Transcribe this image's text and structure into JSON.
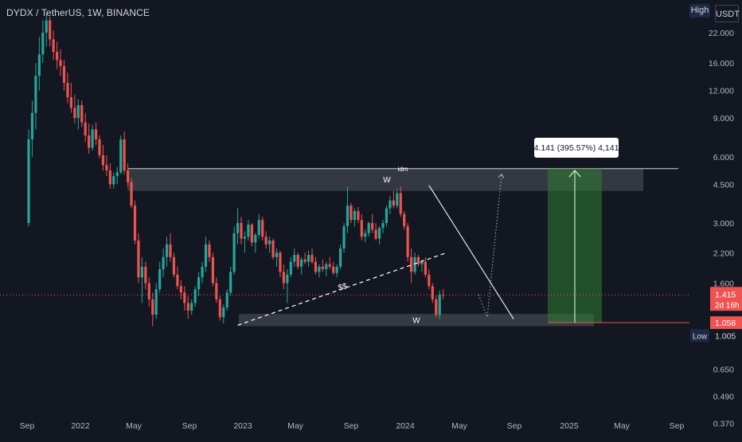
{
  "header": {
    "title": "DYDX / TetherUS, 1W, BINANCE",
    "high_label": "High",
    "currency_label": "USDT"
  },
  "colors": {
    "background": "#131722",
    "up": "#26a69a",
    "down": "#ef5350",
    "zone": "#3a3d44",
    "profit_zone": "#2e7d32"
  },
  "chart_data": {
    "type": "candlestick",
    "symbol": "DYDX / TetherUS",
    "interval": "1W",
    "exchange": "BINANCE",
    "y_scale": "log",
    "ylim": [
      0.33,
      28
    ],
    "y_ticks": [
      {
        "value": 22.0,
        "label": "22.000"
      },
      {
        "value": 16.0,
        "label": "16.000"
      },
      {
        "value": 12.0,
        "label": "12.000"
      },
      {
        "value": 9.0,
        "label": "9.000"
      },
      {
        "value": 6.0,
        "label": "6.000"
      },
      {
        "value": 4.5,
        "label": "4.500"
      },
      {
        "value": 3.0,
        "label": "3.000"
      },
      {
        "value": 2.2,
        "label": "2.200"
      },
      {
        "value": 1.6,
        "label": "1.600"
      },
      {
        "value": 0.65,
        "label": "0.650"
      },
      {
        "value": 0.49,
        "label": "0.490"
      },
      {
        "value": 0.37,
        "label": "0.370"
      }
    ],
    "x_ticks": [
      "Sep",
      "2022",
      "May",
      "Sep",
      "2023",
      "May",
      "Sep",
      "2024",
      "May",
      "Sep",
      "2025",
      "May",
      "Sep"
    ],
    "price_labels": {
      "current": {
        "value": "1.415",
        "countdown": "2d 16h"
      },
      "level": {
        "value": "1.058"
      },
      "low": {
        "label": "Low",
        "value": "1.005"
      }
    },
    "annotations": {
      "measure_label": "4.141 (395.57%) 4,141",
      "top_zone_label": "idm",
      "top_w_label": "W",
      "bottom_w_label": "W",
      "liquidity_label": "$$"
    },
    "candles": [
      [
        3.0,
        8.0,
        2.9,
        7.2
      ],
      [
        7.2,
        10.8,
        6.0,
        9.5
      ],
      [
        9.5,
        16.0,
        8.0,
        14.0
      ],
      [
        14.0,
        21.0,
        12.0,
        17.5
      ],
      [
        17.5,
        25.0,
        16.0,
        22.0
      ],
      [
        22.0,
        27.0,
        19.0,
        25.0
      ],
      [
        25.0,
        26.0,
        19.0,
        20.5
      ],
      [
        20.5,
        22.5,
        16.5,
        18.0
      ],
      [
        18.0,
        20.0,
        15.0,
        16.5
      ],
      [
        16.5,
        18.5,
        14.0,
        15.5
      ],
      [
        15.5,
        16.5,
        12.0,
        13.0
      ],
      [
        13.0,
        14.5,
        10.5,
        11.2
      ],
      [
        11.2,
        13.0,
        9.5,
        10.0
      ],
      [
        10.0,
        11.5,
        8.5,
        9.0
      ],
      [
        9.0,
        11.0,
        8.0,
        10.3
      ],
      [
        10.3,
        10.8,
        8.2,
        8.6
      ],
      [
        8.6,
        9.5,
        7.0,
        7.5
      ],
      [
        7.5,
        8.5,
        6.2,
        6.6
      ],
      [
        6.6,
        8.4,
        6.4,
        8.0
      ],
      [
        8.0,
        8.6,
        6.8,
        7.2
      ],
      [
        7.2,
        7.5,
        5.9,
        6.1
      ],
      [
        6.1,
        6.8,
        5.2,
        5.5
      ],
      [
        5.5,
        6.1,
        4.9,
        5.2
      ],
      [
        5.2,
        5.6,
        4.3,
        4.5
      ],
      [
        4.5,
        5.1,
        4.3,
        4.9
      ],
      [
        4.9,
        5.4,
        4.5,
        5.1
      ],
      [
        5.1,
        7.5,
        5.0,
        7.2
      ],
      [
        7.2,
        7.8,
        5.0,
        5.2
      ],
      [
        5.2,
        5.6,
        4.4,
        4.6
      ],
      [
        4.6,
        4.8,
        3.5,
        3.6
      ],
      [
        3.6,
        3.8,
        2.4,
        2.5
      ],
      [
        2.5,
        2.7,
        1.6,
        1.7
      ],
      [
        1.7,
        2.1,
        1.3,
        1.9
      ],
      [
        1.9,
        2.0,
        1.5,
        1.6
      ],
      [
        1.6,
        1.7,
        1.25,
        1.35
      ],
      [
        1.35,
        1.45,
        1.02,
        1.15
      ],
      [
        1.15,
        1.6,
        1.1,
        1.5
      ],
      [
        1.5,
        2.0,
        1.45,
        1.85
      ],
      [
        1.85,
        2.3,
        1.7,
        2.1
      ],
      [
        2.1,
        2.6,
        1.9,
        2.4
      ],
      [
        2.4,
        2.7,
        2.0,
        2.1
      ],
      [
        2.1,
        2.2,
        1.7,
        1.75
      ],
      [
        1.75,
        1.9,
        1.5,
        1.55
      ],
      [
        1.55,
        1.65,
        1.35,
        1.45
      ],
      [
        1.45,
        1.55,
        1.2,
        1.3
      ],
      [
        1.3,
        1.4,
        1.1,
        1.2
      ],
      [
        1.2,
        1.35,
        1.15,
        1.3
      ],
      [
        1.3,
        1.55,
        1.25,
        1.5
      ],
      [
        1.5,
        1.8,
        1.4,
        1.7
      ],
      [
        1.7,
        2.0,
        1.6,
        1.9
      ],
      [
        1.9,
        2.6,
        1.8,
        2.4
      ],
      [
        2.4,
        2.5,
        2.0,
        2.1
      ],
      [
        2.1,
        2.2,
        1.55,
        1.6
      ],
      [
        1.6,
        1.7,
        1.3,
        1.35
      ],
      [
        1.35,
        1.4,
        1.08,
        1.12
      ],
      [
        1.12,
        1.28,
        1.05,
        1.24
      ],
      [
        1.24,
        1.5,
        1.2,
        1.45
      ],
      [
        1.45,
        1.9,
        1.4,
        1.8
      ],
      [
        1.8,
        2.9,
        1.75,
        2.7
      ],
      [
        2.7,
        3.5,
        2.4,
        3.0
      ],
      [
        3.0,
        3.2,
        2.4,
        2.55
      ],
      [
        2.55,
        2.75,
        2.2,
        2.6
      ],
      [
        2.6,
        3.1,
        2.5,
        2.95
      ],
      [
        2.95,
        3.0,
        2.35,
        2.45
      ],
      [
        2.45,
        2.7,
        2.2,
        2.65
      ],
      [
        2.65,
        3.3,
        2.55,
        3.1
      ],
      [
        3.1,
        3.2,
        2.5,
        2.6
      ],
      [
        2.6,
        2.75,
        2.3,
        2.4
      ],
      [
        2.4,
        2.6,
        2.2,
        2.5
      ],
      [
        2.5,
        2.55,
        2.05,
        2.1
      ],
      [
        2.1,
        2.3,
        1.9,
        2.2
      ],
      [
        2.2,
        2.25,
        1.7,
        1.8
      ],
      [
        1.8,
        1.95,
        1.5,
        1.6
      ],
      [
        1.6,
        1.85,
        1.3,
        1.75
      ],
      [
        1.75,
        2.1,
        1.7,
        2.0
      ],
      [
        2.0,
        2.3,
        1.9,
        2.15
      ],
      [
        2.15,
        2.2,
        1.85,
        1.9
      ],
      [
        1.9,
        2.1,
        1.75,
        2.05
      ],
      [
        2.05,
        2.2,
        1.95,
        2.0
      ],
      [
        2.0,
        2.25,
        1.9,
        2.15
      ],
      [
        2.15,
        2.3,
        1.95,
        2.0
      ],
      [
        2.0,
        2.1,
        1.75,
        1.8
      ],
      [
        1.8,
        1.95,
        1.7,
        1.9
      ],
      [
        1.9,
        2.05,
        1.8,
        1.85
      ],
      [
        1.85,
        2.0,
        1.72,
        1.95
      ],
      [
        1.95,
        2.1,
        1.85,
        1.9
      ],
      [
        1.9,
        2.0,
        1.75,
        1.78
      ],
      [
        1.78,
        1.95,
        1.7,
        1.9
      ],
      [
        1.9,
        2.4,
        1.85,
        2.3
      ],
      [
        2.3,
        3.0,
        2.2,
        2.9
      ],
      [
        2.9,
        4.4,
        2.7,
        3.6
      ],
      [
        3.6,
        3.7,
        3.0,
        3.1
      ],
      [
        3.1,
        3.5,
        2.9,
        3.4
      ],
      [
        3.4,
        3.55,
        3.0,
        3.1
      ],
      [
        3.1,
        3.3,
        2.5,
        2.6
      ],
      [
        2.6,
        2.8,
        2.45,
        2.7
      ],
      [
        2.7,
        3.05,
        2.6,
        3.0
      ],
      [
        3.0,
        3.3,
        2.7,
        2.8
      ],
      [
        2.8,
        3.0,
        2.5,
        2.55
      ],
      [
        2.55,
        2.9,
        2.4,
        2.85
      ],
      [
        2.85,
        3.1,
        2.7,
        3.0
      ],
      [
        3.0,
        3.6,
        2.9,
        3.5
      ],
      [
        3.5,
        4.0,
        3.3,
        3.8
      ],
      [
        3.8,
        4.2,
        3.5,
        3.6
      ],
      [
        3.6,
        4.3,
        3.5,
        4.1
      ],
      [
        4.1,
        4.4,
        3.2,
        3.3
      ],
      [
        3.3,
        3.4,
        2.8,
        2.9
      ],
      [
        2.9,
        3.0,
        2.0,
        2.1
      ],
      [
        2.1,
        2.3,
        1.6,
        1.8
      ],
      [
        1.8,
        2.2,
        1.75,
        2.1
      ],
      [
        2.1,
        2.15,
        1.9,
        1.95
      ],
      [
        1.95,
        2.05,
        1.8,
        2.0
      ],
      [
        2.0,
        2.1,
        1.7,
        1.75
      ],
      [
        1.75,
        1.85,
        1.5,
        1.55
      ],
      [
        1.55,
        1.6,
        1.3,
        1.35
      ],
      [
        1.35,
        1.4,
        1.12,
        1.15
      ],
      [
        1.15,
        1.48,
        1.1,
        1.42
      ],
      [
        1.42,
        1.5,
        1.35,
        1.415
      ]
    ]
  }
}
